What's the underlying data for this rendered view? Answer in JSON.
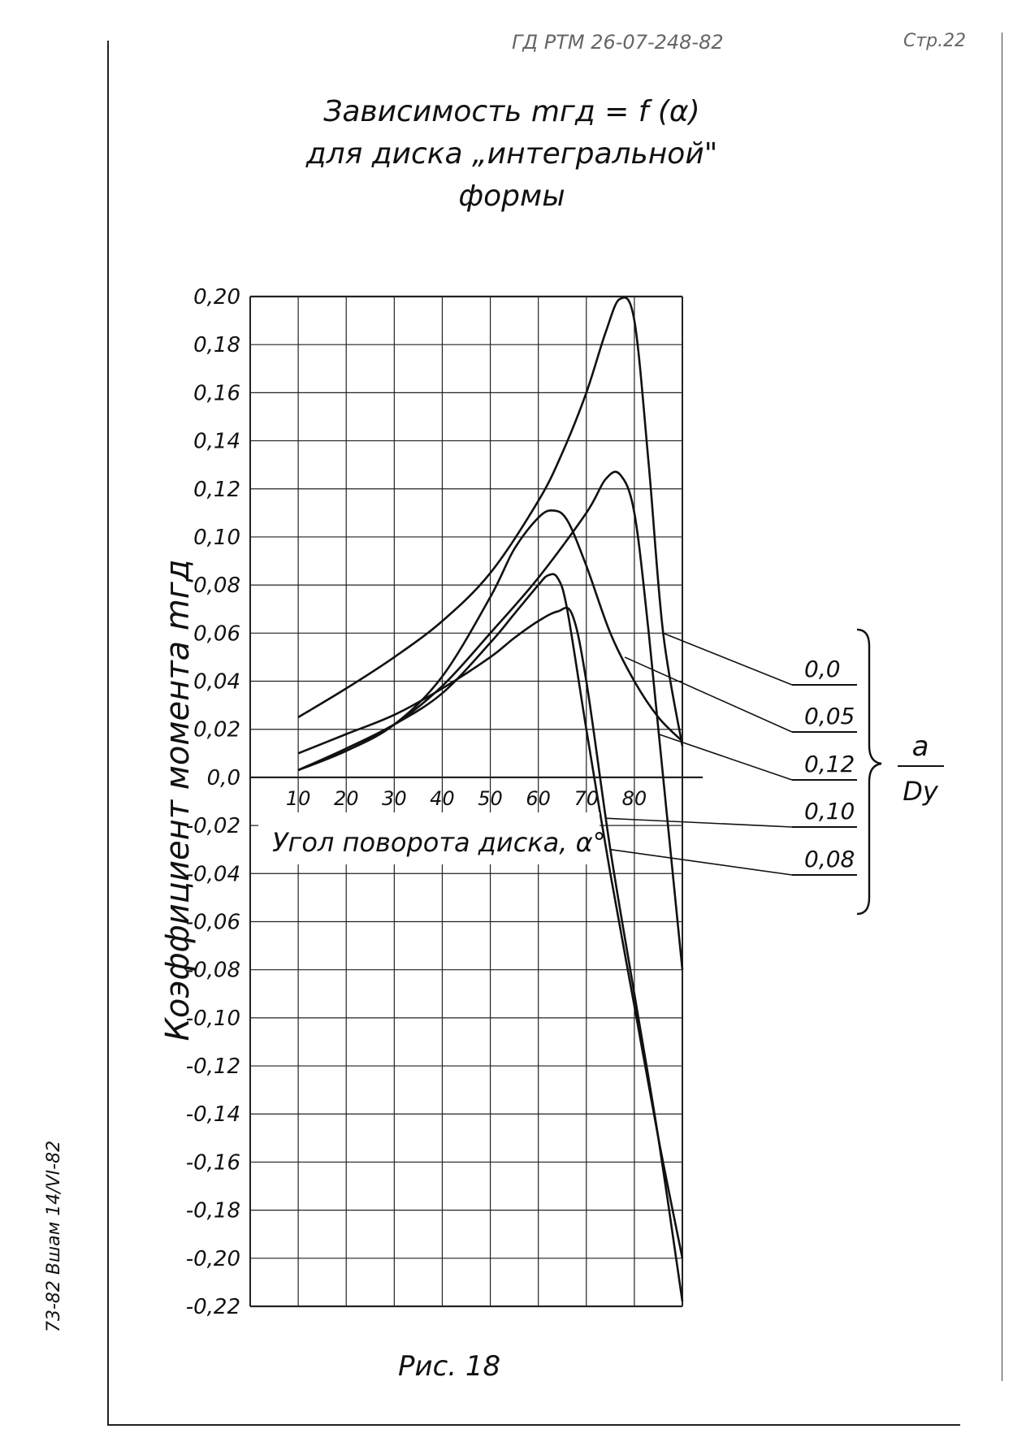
{
  "header": {
    "doc_code": "ГД РТМ 26-07-248-82",
    "page": "Стр.22"
  },
  "title": {
    "line1": "Зависимость  mгд = f (α)",
    "line2": "для  диска „интегральной\"",
    "line3": "формы"
  },
  "caption": "Рис. 18",
  "margin_note": "73-82  Вшам 14/VI-82",
  "chart_data": {
    "type": "line",
    "title": "Зависимость mгд = f (α) для диска „интегральной\" формы",
    "xlabel": "Угол поворота диска, α°",
    "ylabel": "Коэффициент момента mгд",
    "x_tick_labels": [
      "10",
      "20",
      "30",
      "40",
      "50",
      "60",
      "70",
      "80"
    ],
    "y_tick_labels": [
      "0,20",
      "0,18",
      "0,16",
      "0,14",
      "0,12",
      "0,10",
      "0,08",
      "0,06",
      "0,04",
      "0,02",
      "0,0",
      "-0,02",
      "-0,04",
      "-0,06",
      "-0,08",
      "-0,10",
      "-0,12",
      "-0,14",
      "-0,16",
      "-0,18",
      "-0,20",
      "-0,22"
    ],
    "xlim": [
      0,
      90
    ],
    "ylim": [
      -0.22,
      0.2
    ],
    "grid": true,
    "legend_title": "a / Dу",
    "legend_title_top": "a",
    "legend_title_bottom": "Dу",
    "series": [
      {
        "name": "0,0",
        "x": [
          10,
          20,
          30,
          40,
          50,
          60,
          65,
          70,
          74,
          77,
          80,
          83,
          86,
          90
        ],
        "y": [
          0.025,
          0.037,
          0.05,
          0.065,
          0.085,
          0.115,
          0.135,
          0.16,
          0.185,
          0.199,
          0.19,
          0.13,
          0.06,
          0.013
        ]
      },
      {
        "name": "0,05",
        "x": [
          10,
          20,
          30,
          40,
          50,
          60,
          70,
          74,
          77,
          80,
          83,
          86,
          90
        ],
        "y": [
          0.003,
          0.012,
          0.022,
          0.038,
          0.06,
          0.083,
          0.11,
          0.124,
          0.126,
          0.11,
          0.06,
          0.0,
          -0.08
        ]
      },
      {
        "name": "0,12",
        "x": [
          10,
          20,
          30,
          40,
          50,
          55,
          60,
          63,
          66,
          70,
          75,
          80,
          85,
          90
        ],
        "y": [
          0.003,
          0.011,
          0.022,
          0.042,
          0.075,
          0.095,
          0.108,
          0.111,
          0.107,
          0.088,
          0.06,
          0.04,
          0.025,
          0.015
        ]
      },
      {
        "name": "0,10",
        "x": [
          10,
          20,
          30,
          40,
          50,
          55,
          60,
          62,
          64,
          66,
          70,
          75,
          80,
          85,
          90
        ],
        "y": [
          0.003,
          0.012,
          0.022,
          0.035,
          0.056,
          0.068,
          0.08,
          0.084,
          0.083,
          0.07,
          0.02,
          -0.04,
          -0.095,
          -0.15,
          -0.2
        ]
      },
      {
        "name": "0,08",
        "x": [
          10,
          20,
          30,
          40,
          50,
          55,
          60,
          64,
          67,
          70,
          75,
          80,
          85,
          90
        ],
        "y": [
          0.01,
          0.018,
          0.026,
          0.037,
          0.05,
          0.058,
          0.065,
          0.069,
          0.068,
          0.04,
          -0.03,
          -0.09,
          -0.15,
          -0.218
        ]
      }
    ]
  }
}
